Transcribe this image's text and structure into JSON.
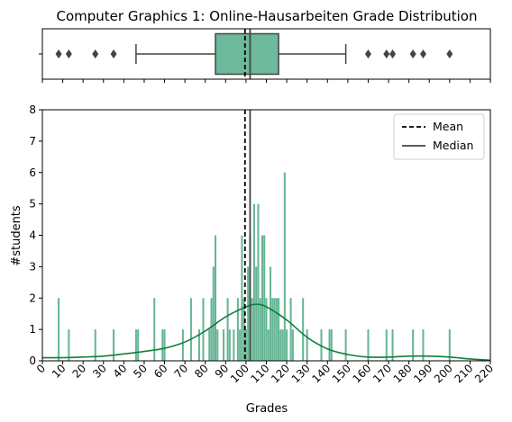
{
  "chart_data": {
    "type": "bar",
    "title": "Computer Graphics 1: Online-Hausarbeiten Grade Distribution",
    "xlabel": "Grades",
    "ylabel": "#students",
    "xlim": [
      0,
      220
    ],
    "ylim": [
      0,
      8
    ],
    "xticks": [
      0,
      10,
      20,
      30,
      40,
      50,
      60,
      70,
      80,
      90,
      100,
      110,
      120,
      130,
      140,
      150,
      160,
      170,
      180,
      190,
      200,
      210,
      220
    ],
    "yticks": [
      0,
      1,
      2,
      3,
      4,
      5,
      6,
      7,
      8
    ],
    "legend": {
      "placement": "top-right",
      "entries": [
        "Mean",
        "Median"
      ]
    },
    "mean": 99.5,
    "median": 102,
    "colors": {
      "bars": "#55ad89",
      "kde": "#0f7f3f",
      "box": "#6cb99b",
      "lines": "#444444"
    },
    "histogram": {
      "bins": [
        [
          8,
          2
        ],
        [
          13,
          1
        ],
        [
          26,
          1
        ],
        [
          35,
          1
        ],
        [
          46,
          1
        ],
        [
          47,
          1
        ],
        [
          55,
          2
        ],
        [
          59,
          1
        ],
        [
          60,
          1
        ],
        [
          69,
          1
        ],
        [
          73,
          2
        ],
        [
          77,
          1
        ],
        [
          79,
          2
        ],
        [
          82,
          1
        ],
        [
          83,
          2
        ],
        [
          84,
          3
        ],
        [
          85,
          4
        ],
        [
          86,
          1
        ],
        [
          89,
          1
        ],
        [
          91,
          2
        ],
        [
          92,
          1
        ],
        [
          94,
          1
        ],
        [
          96,
          2
        ],
        [
          97,
          1
        ],
        [
          98,
          4
        ],
        [
          99,
          2
        ],
        [
          100,
          1
        ],
        [
          101,
          3
        ],
        [
          102,
          4
        ],
        [
          103,
          2
        ],
        [
          104,
          5
        ],
        [
          105,
          3
        ],
        [
          106,
          5
        ],
        [
          107,
          2
        ],
        [
          108,
          4
        ],
        [
          109,
          4
        ],
        [
          110,
          2
        ],
        [
          111,
          1
        ],
        [
          112,
          3
        ],
        [
          113,
          2
        ],
        [
          114,
          2
        ],
        [
          115,
          2
        ],
        [
          116,
          2
        ],
        [
          117,
          1
        ],
        [
          118,
          1
        ],
        [
          119,
          6
        ],
        [
          120,
          1
        ],
        [
          122,
          2
        ],
        [
          123,
          1
        ],
        [
          128,
          2
        ],
        [
          130,
          1
        ],
        [
          137,
          1
        ],
        [
          141,
          1
        ],
        [
          142,
          1
        ],
        [
          149,
          1
        ],
        [
          160,
          1
        ],
        [
          169,
          1
        ],
        [
          172,
          1
        ],
        [
          182,
          1
        ],
        [
          187,
          1
        ],
        [
          200,
          1
        ]
      ]
    },
    "kde": {
      "x": [
        0,
        10,
        20,
        30,
        40,
        50,
        60,
        70,
        80,
        90,
        100,
        105,
        110,
        120,
        130,
        140,
        150,
        160,
        170,
        180,
        190,
        200,
        210,
        220
      ],
      "y": [
        0.1,
        0.1,
        0.12,
        0.15,
        0.22,
        0.3,
        0.4,
        0.6,
        0.95,
        1.4,
        1.72,
        1.8,
        1.72,
        1.3,
        0.75,
        0.38,
        0.2,
        0.12,
        0.12,
        0.15,
        0.15,
        0.12,
        0.06,
        0.02
      ]
    },
    "boxplot": {
      "q1": 85,
      "median": 102,
      "q3": 116,
      "whisker_low": 46,
      "whisker_high": 149,
      "outliers": [
        8,
        13,
        26,
        35,
        160,
        169,
        172,
        182,
        187,
        200
      ]
    }
  }
}
